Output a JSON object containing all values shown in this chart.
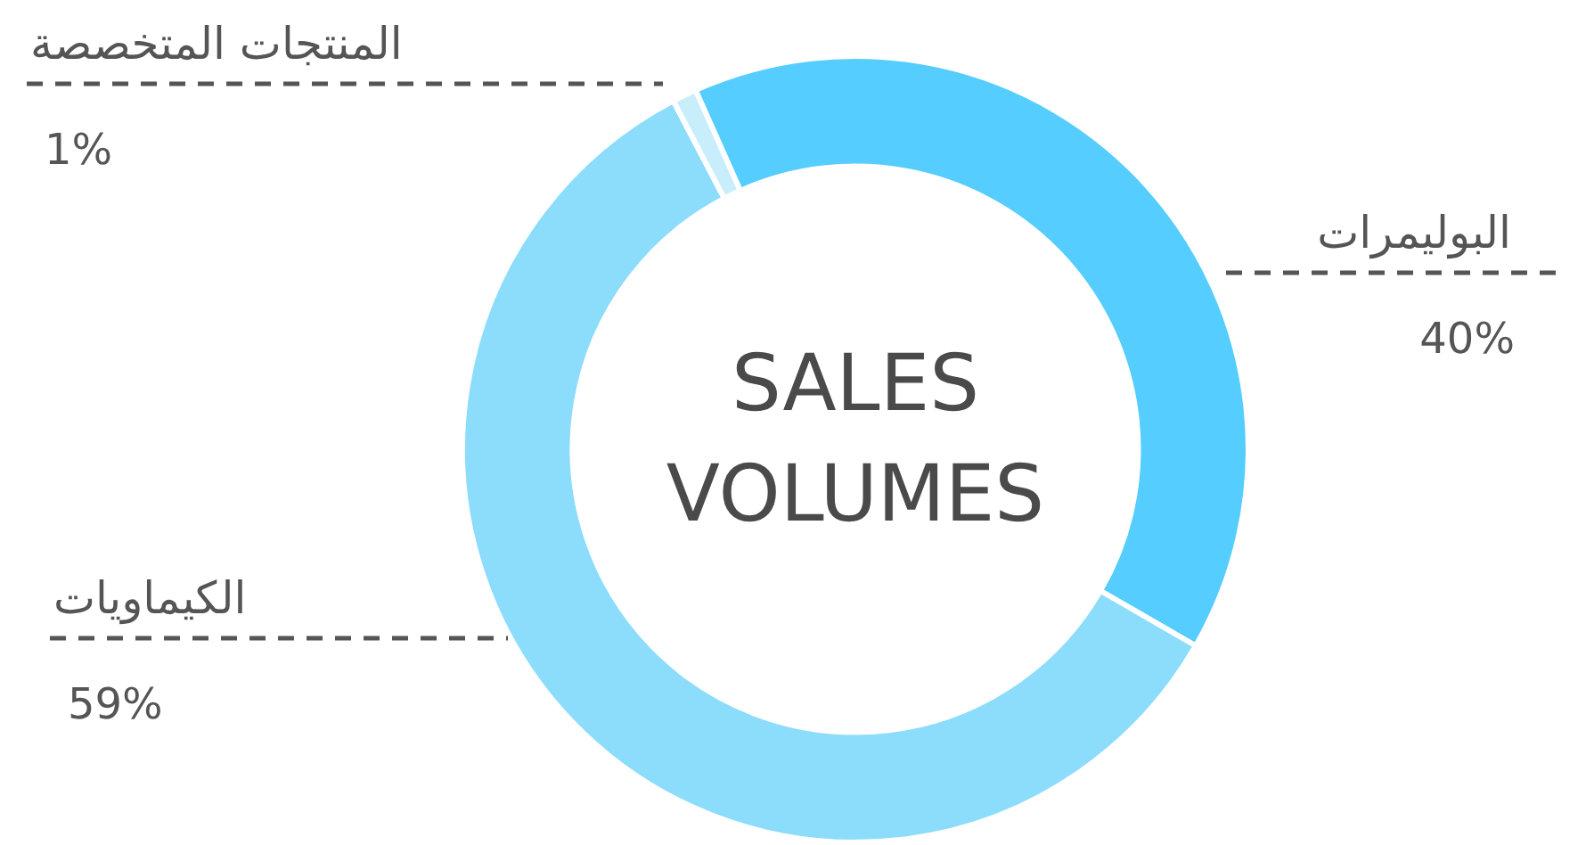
{
  "chart_data": {
    "type": "donut",
    "title": "SALES VOLUMES",
    "categories": [
      "البوليمرات",
      "الكيماويات",
      "المنتجات المتخصصة"
    ],
    "values": [
      40,
      59,
      1
    ],
    "value_labels": [
      "40%",
      "59%",
      "1%"
    ],
    "colors": [
      "#55cdfe",
      "#8cdcfc",
      "#c8eefc"
    ],
    "legend": false
  }
}
